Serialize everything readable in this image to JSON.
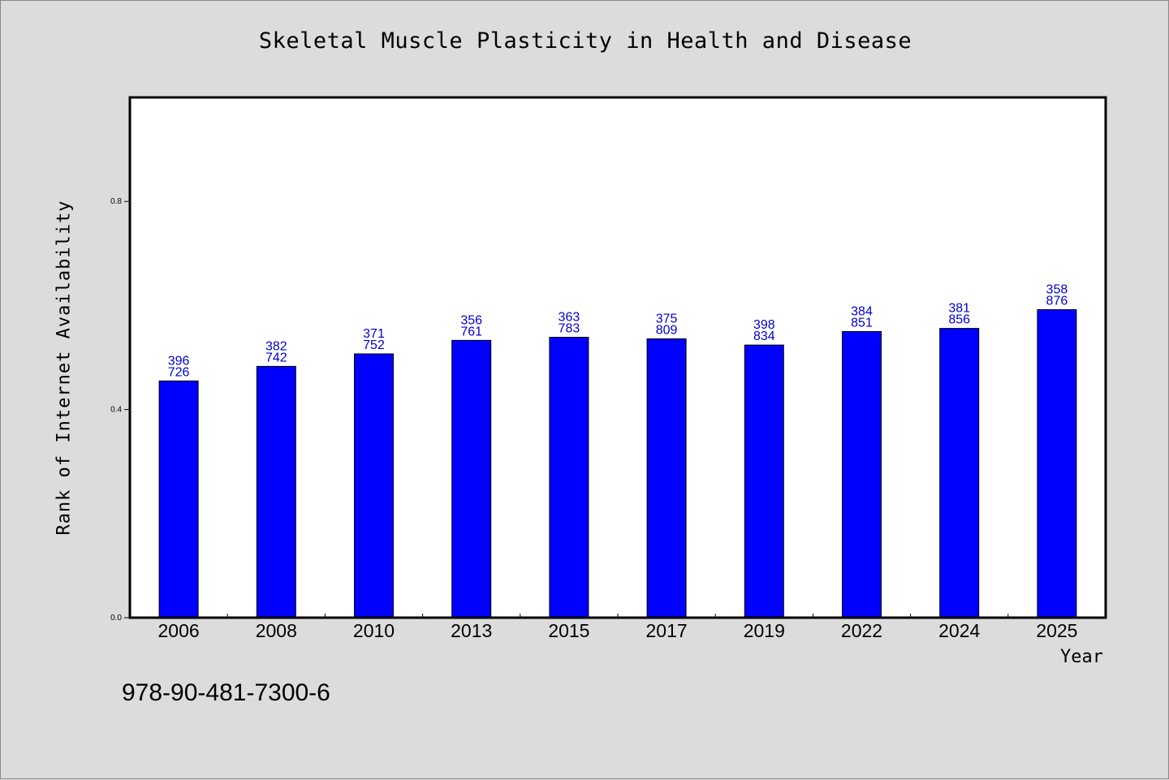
{
  "chart_data": {
    "type": "bar",
    "title": "Skeletal Muscle Plasticity in Health and Disease",
    "xlabel": "Year",
    "ylabel": "Rank of Internet Availability",
    "categories": [
      "2006",
      "2008",
      "2010",
      "2013",
      "2015",
      "2017",
      "2019",
      "2022",
      "2024",
      "2025"
    ],
    "values": [
      0.455,
      0.483,
      0.507,
      0.533,
      0.539,
      0.536,
      0.524,
      0.55,
      0.556,
      0.592
    ],
    "bar_labels": [
      [
        "396",
        "726"
      ],
      [
        "382",
        "742"
      ],
      [
        "371",
        "752"
      ],
      [
        "356",
        "761"
      ],
      [
        "363",
        "783"
      ],
      [
        "375",
        "809"
      ],
      [
        "398",
        "834"
      ],
      [
        "384",
        "851"
      ],
      [
        "381",
        "856"
      ],
      [
        "358",
        "876"
      ]
    ],
    "yticks": [
      "0.0",
      "0.4",
      "0.8"
    ],
    "ylim": [
      0,
      1.0
    ],
    "grid": false,
    "legend": "none",
    "colors": {
      "bar": "#0000ff",
      "bar_label": "#0000cc",
      "background": "#dcdcdc",
      "plot_bg": "#ffffff"
    }
  },
  "footer": {
    "isbn": "978-90-481-7300-6"
  }
}
